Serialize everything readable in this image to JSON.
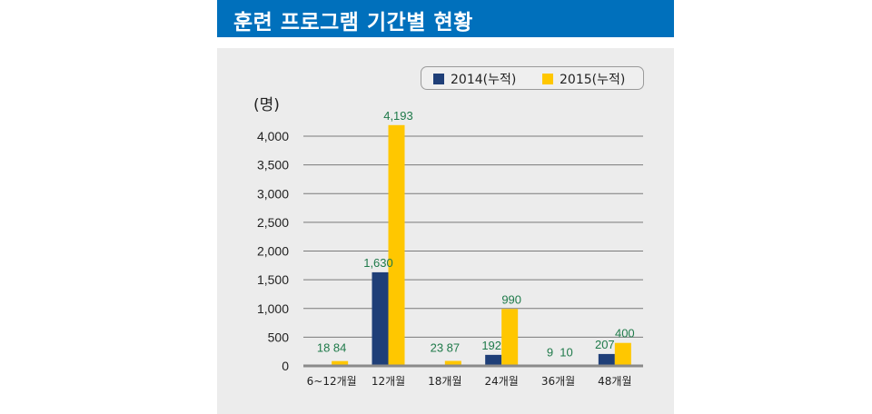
{
  "header": {
    "title": "훈련 프로그램 기간별 현황"
  },
  "chart_data": {
    "type": "bar",
    "title": "훈련 프로그램 기간별 현황",
    "ylabel": "(명)",
    "xlabel": "",
    "ylim": [
      0,
      4000
    ],
    "yticks": [
      0,
      500,
      1000,
      1500,
      2000,
      2500,
      3000,
      3500,
      4000
    ],
    "ytick_labels": [
      "0",
      "500",
      "1,000",
      "1,500",
      "2,000",
      "2,500",
      "3,000",
      "3,500",
      "4,000"
    ],
    "grid": true,
    "legend_position": "top-right",
    "categories": [
      "6~12개월",
      "12개월",
      "18개월",
      "24개월",
      "36개월",
      "48개월"
    ],
    "series": [
      {
        "name": "2014(누적)",
        "color": "#1f3f78",
        "values": [
          18,
          1630,
          23,
          192,
          9,
          207
        ],
        "labels": [
          "18",
          "1,630",
          "23",
          "192",
          "9",
          "207"
        ]
      },
      {
        "name": "2015(누적)",
        "color": "#ffc700",
        "values": [
          84,
          4193,
          87,
          990,
          10,
          400
        ],
        "labels": [
          "84",
          "4,193",
          "87",
          "990",
          "10",
          "400"
        ]
      }
    ]
  }
}
